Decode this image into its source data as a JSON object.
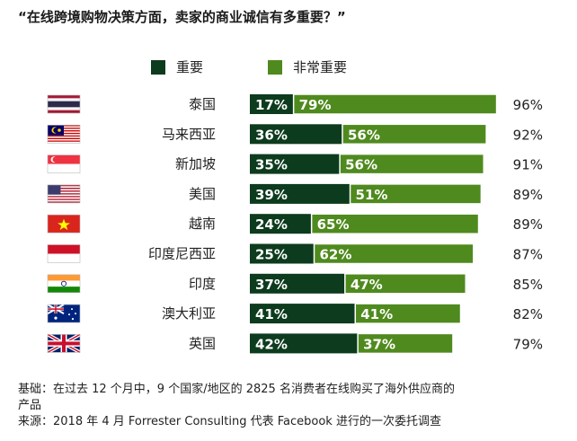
{
  "title": "“在线跨境购物决策方面，卖家的商业诚信有多重要？”",
  "legend": [
    {
      "label": "重要",
      "color": "#0d3b1e"
    },
    {
      "label": "非常重要",
      "color": "#4f8a1e"
    }
  ],
  "chart_data": {
    "type": "bar",
    "orientation": "horizontal",
    "stacked": true,
    "categories": [
      "泰国",
      "马来西亚",
      "新加坡",
      "美国",
      "越南",
      "印度尼西亚",
      "印度",
      "澳大利亚",
      "英国"
    ],
    "series": [
      {
        "name": "重要",
        "color": "#0d3b1e",
        "values": [
          17,
          36,
          35,
          39,
          24,
          25,
          37,
          41,
          42
        ],
        "labels": [
          "17%",
          "36%",
          "35%",
          "39%",
          "24%",
          "25%",
          "37%",
          "41%",
          "42%"
        ]
      },
      {
        "name": "非常重要",
        "color": "#4f8a1e",
        "values": [
          79,
          56,
          56,
          51,
          65,
          62,
          47,
          41,
          37
        ],
        "labels": [
          "79%",
          "56%",
          "56%",
          "51%",
          "65%",
          "62%",
          "47%",
          "41%",
          "37%"
        ]
      }
    ],
    "totals": [
      "96%",
      "92%",
      "91%",
      "89%",
      "89%",
      "87%",
      "85%",
      "82%",
      "79%"
    ],
    "flags": [
      "thailand-flag",
      "malaysia-flag",
      "singapore-flag",
      "usa-flag",
      "vietnam-flag",
      "indonesia-flag",
      "india-flag",
      "australia-flag",
      "uk-flag"
    ],
    "xlim": [
      0,
      100
    ],
    "grid": false,
    "legend_position": "top"
  },
  "notes": {
    "basis_line1": "基础：在过去 12 个月中，9 个国家/地区的 2825 名消费者在线购买了海外供应商的",
    "basis_line2": "产品",
    "source": "来源：2018 年 4 月 Forrester Consulting 代表 Facebook 进行的一次委托调查"
  }
}
